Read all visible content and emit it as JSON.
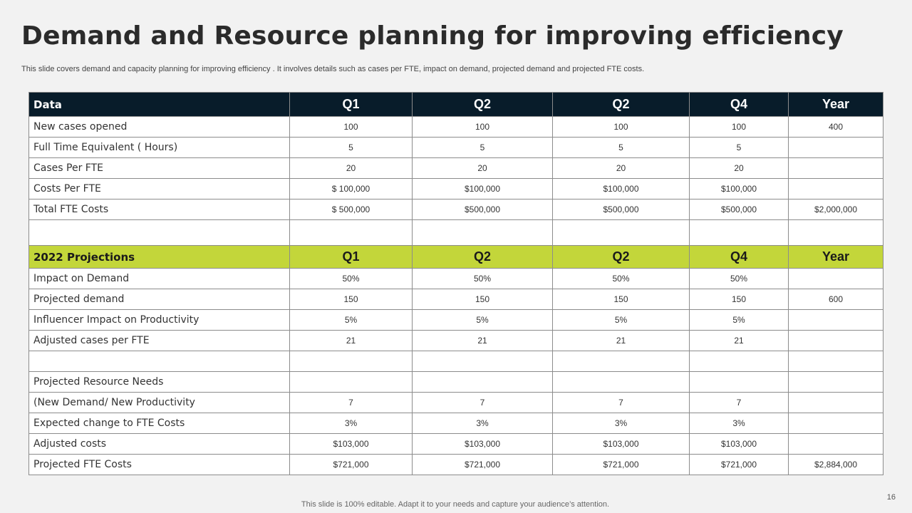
{
  "title": "Demand and Resource planning for improving efficiency",
  "subtitle": "This slide covers demand and capacity planning for improving efficiency . It involves details such as cases per FTE, impact on demand, projected demand and projected FTE costs.",
  "colors": {
    "dark_header": "#081c2a",
    "green_header": "#c3d63a",
    "background": "#f2f2f2"
  },
  "header1": [
    "Data",
    "Q1",
    "Q2",
    "Q2",
    "Q4",
    "Year"
  ],
  "rows1": [
    [
      "New cases opened",
      "100",
      "100",
      "100",
      "100",
      "400"
    ],
    [
      "Full Time Equivalent ( Hours)",
      "5",
      "5",
      "5",
      "5",
      ""
    ],
    [
      "Cases Per FTE",
      "20",
      "20",
      "20",
      "20",
      ""
    ],
    [
      "Costs Per FTE",
      "$ 100,000",
      "$100,000",
      "$100,000",
      "$100,000",
      ""
    ],
    [
      "Total FTE Costs",
      "$ 500,000",
      "$500,000",
      "$500,000",
      "$500,000",
      "$2,000,000"
    ]
  ],
  "header2": [
    "2022 Projections",
    "Q1",
    "Q2",
    "Q2",
    "Q4",
    "Year"
  ],
  "rows2": [
    [
      "Impact on Demand",
      "50%",
      "50%",
      "50%",
      "50%",
      ""
    ],
    [
      "Projected demand",
      "150",
      "150",
      "150",
      "150",
      "600"
    ],
    [
      "Influencer Impact on Productivity",
      "5%",
      "5%",
      "5%",
      "5%",
      ""
    ],
    [
      "Adjusted cases per FTE",
      "21",
      "21",
      "21",
      "21",
      ""
    ]
  ],
  "rows3": [
    [
      "Projected Resource Needs",
      "",
      "",
      "",
      "",
      ""
    ],
    [
      "(New Demand/ New Productivity",
      "7",
      "7",
      "7",
      "7",
      ""
    ],
    [
      "Expected change to FTE Costs",
      "3%",
      "3%",
      "3%",
      "3%",
      ""
    ],
    [
      "Adjusted costs",
      "$103,000",
      "$103,000",
      "$103,000",
      "$103,000",
      ""
    ],
    [
      "Projected FTE Costs",
      "$721,000",
      "$721,000",
      "$721,000",
      "$721,000",
      "$2,884,000"
    ]
  ],
  "page_number": "16",
  "footer": "This slide is 100% editable. Adapt it to your needs and capture your audience’s attention."
}
